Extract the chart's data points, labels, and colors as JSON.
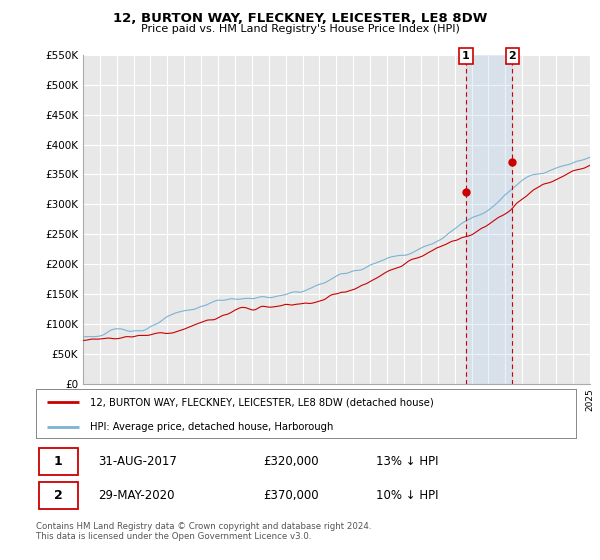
{
  "title": "12, BURTON WAY, FLECKNEY, LEICESTER, LE8 8DW",
  "subtitle": "Price paid vs. HM Land Registry's House Price Index (HPI)",
  "ylabel_ticks": [
    "£0",
    "£50K",
    "£100K",
    "£150K",
    "£200K",
    "£250K",
    "£300K",
    "£350K",
    "£400K",
    "£450K",
    "£500K",
    "£550K"
  ],
  "ytick_values": [
    0,
    50000,
    100000,
    150000,
    200000,
    250000,
    300000,
    350000,
    400000,
    450000,
    500000,
    550000
  ],
  "x_start_year": 1995,
  "x_end_year": 2025,
  "transaction1": {
    "date": "2017-08-31",
    "price": 320000,
    "label": "1",
    "x": 2017.667
  },
  "transaction2": {
    "date": "2020-05-29",
    "price": 370000,
    "label": "2",
    "x": 2020.417
  },
  "legend_line1": "12, BURTON WAY, FLECKNEY, LEICESTER, LE8 8DW (detached house)",
  "legend_line2": "HPI: Average price, detached house, Harborough",
  "table_row1": [
    "1",
    "31-AUG-2017",
    "£320,000",
    "13% ↓ HPI"
  ],
  "table_row2": [
    "2",
    "29-MAY-2020",
    "£370,000",
    "10% ↓ HPI"
  ],
  "footnote": "Contains HM Land Registry data © Crown copyright and database right 2024.\nThis data is licensed under the Open Government Licence v3.0.",
  "hpi_color": "#7ab3d4",
  "price_color": "#cc0000",
  "vline_color": "#cc0000",
  "background_chart": "#e8e8e8",
  "grid_color": "#ffffff",
  "span_color": "#ddeeff"
}
